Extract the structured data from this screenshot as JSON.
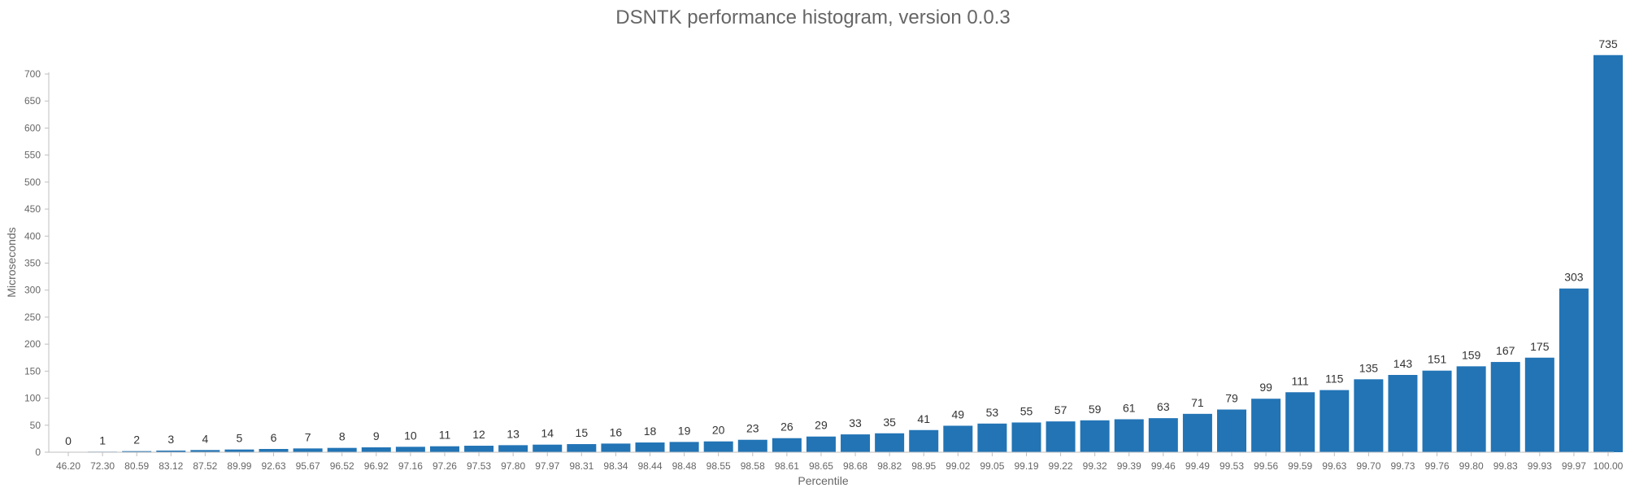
{
  "colors": {
    "bar": "#2274b5",
    "axis": "#bfbfbf",
    "text": "#666666",
    "label": "#333333"
  },
  "chart_data": {
    "type": "bar",
    "title": "DSNTK performance histogram, version 0.0.3",
    "xlabel": "Percentile",
    "ylabel": "Microseconds",
    "ylim": [
      0,
      700
    ],
    "yticks": [
      0,
      50,
      100,
      150,
      200,
      250,
      300,
      350,
      400,
      450,
      500,
      550,
      600,
      650,
      700
    ],
    "grid": false,
    "categories": [
      "46.20",
      "72.30",
      "80.59",
      "83.12",
      "87.52",
      "89.99",
      "92.63",
      "95.67",
      "96.52",
      "96.92",
      "97.16",
      "97.26",
      "97.53",
      "97.80",
      "97.97",
      "98.31",
      "98.34",
      "98.44",
      "98.48",
      "98.55",
      "98.58",
      "98.61",
      "98.65",
      "98.68",
      "98.82",
      "98.95",
      "99.02",
      "99.05",
      "99.19",
      "99.22",
      "99.32",
      "99.39",
      "99.46",
      "99.49",
      "99.53",
      "99.56",
      "99.59",
      "99.63",
      "99.70",
      "99.73",
      "99.76",
      "99.80",
      "99.83",
      "99.93",
      "99.97",
      "100.00"
    ],
    "values": [
      0,
      1,
      2,
      3,
      4,
      5,
      6,
      7,
      8,
      9,
      10,
      11,
      12,
      13,
      14,
      15,
      16,
      18,
      19,
      20,
      23,
      26,
      29,
      33,
      35,
      41,
      49,
      53,
      55,
      57,
      59,
      61,
      63,
      71,
      79,
      99,
      111,
      115,
      135,
      143,
      151,
      159,
      167,
      175,
      303,
      735
    ]
  }
}
